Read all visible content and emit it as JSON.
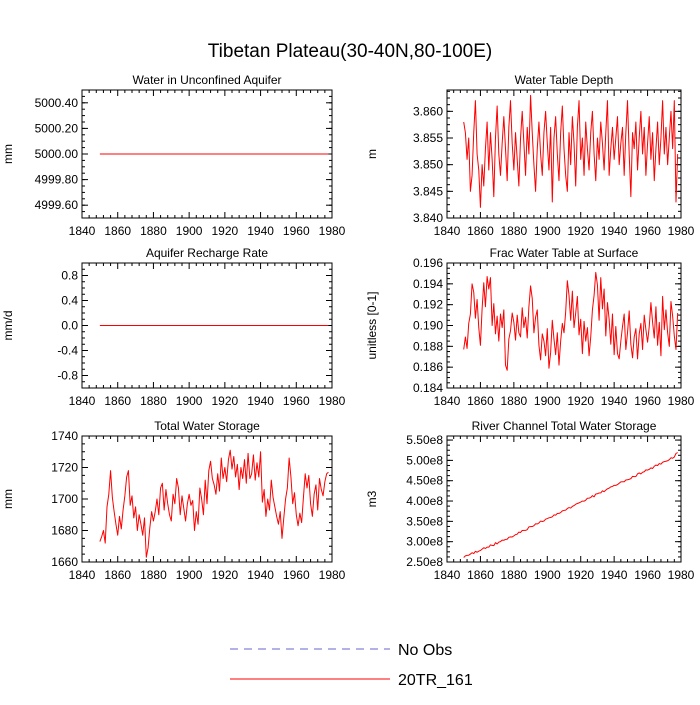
{
  "page_title": "Tibetan Plateau(30-40N,80-100E)",
  "legend": [
    {
      "label": "No Obs",
      "color": "#6666cc",
      "style": "dashed"
    },
    {
      "label": "20TR_161",
      "color": "#ff0000",
      "style": "solid"
    }
  ],
  "colors": {
    "series": "#ff0000",
    "axis": "#000000"
  },
  "chart_data": [
    {
      "type": "line",
      "title": "Water in Unconfined Aquifer",
      "ylabel": "mm",
      "xlim": [
        1840,
        1980
      ],
      "ylim": [
        4999.5,
        5000.5
      ],
      "xticks": [
        1840,
        1860,
        1880,
        1900,
        1920,
        1940,
        1960,
        1980
      ],
      "xtick_labels": [
        "1840",
        "1860",
        "1880",
        "1900",
        "1920",
        "1940",
        "1960",
        "1980"
      ],
      "yticks": [
        4999.6,
        4999.8,
        5000.0,
        5000.2,
        5000.4
      ],
      "ytick_labels": [
        "4999.60",
        "4999.80",
        "5000.00",
        "5000.20",
        "5000.40"
      ],
      "series": [
        {
          "name": "20TR_161",
          "x_start": 1850,
          "x_end": 1978,
          "values": [
            5000.0,
            5000.0
          ]
        }
      ]
    },
    {
      "type": "line",
      "title": "Water Table Depth",
      "ylabel": "m",
      "xlim": [
        1840,
        1980
      ],
      "ylim": [
        3.84,
        3.864
      ],
      "xticks": [
        1840,
        1860,
        1880,
        1900,
        1920,
        1940,
        1960,
        1980
      ],
      "xtick_labels": [
        "1840",
        "1860",
        "1880",
        "1900",
        "1920",
        "1940",
        "1960",
        "1980"
      ],
      "yticks": [
        3.84,
        3.845,
        3.85,
        3.855,
        3.86
      ],
      "ytick_labels": [
        "3.840",
        "3.845",
        "3.850",
        "3.855",
        "3.860"
      ],
      "series": [
        {
          "name": "20TR_161",
          "x_start": 1850,
          "x_end": 1978,
          "values": [
            3.858,
            3.856,
            3.851,
            3.855,
            3.845,
            3.848,
            3.856,
            3.862,
            3.852,
            3.849,
            3.842,
            3.85,
            3.846,
            3.853,
            3.858,
            3.849,
            3.856,
            3.851,
            3.844,
            3.855,
            3.861,
            3.852,
            3.848,
            3.854,
            3.859,
            3.853,
            3.847,
            3.857,
            3.862,
            3.854,
            3.849,
            3.856,
            3.851,
            3.846,
            3.855,
            3.86,
            3.854,
            3.848,
            3.857,
            3.852,
            3.863,
            3.856,
            3.85,
            3.845,
            3.853,
            3.858,
            3.852,
            3.848,
            3.856,
            3.86,
            3.854,
            3.849,
            3.857,
            3.843,
            3.855,
            3.859,
            3.852,
            3.847,
            3.856,
            3.861,
            3.853,
            3.848,
            3.845,
            3.856,
            3.85,
            3.859,
            3.854,
            3.846,
            3.857,
            3.862,
            3.851,
            3.855,
            3.848,
            3.858,
            3.853,
            3.849,
            3.856,
            3.86,
            3.852,
            3.847,
            3.855,
            3.851,
            3.858,
            3.854,
            3.849,
            3.856,
            3.862,
            3.848,
            3.853,
            3.857,
            3.851,
            3.855,
            3.859,
            3.85,
            3.854,
            3.857,
            3.848,
            3.856,
            3.862,
            3.852,
            3.844,
            3.856,
            3.853,
            3.858,
            3.849,
            3.855,
            3.86,
            3.852,
            3.857,
            3.848,
            3.854,
            3.859,
            3.851,
            3.856,
            3.847,
            3.853,
            3.858,
            3.85,
            3.855,
            3.862,
            3.852,
            3.857,
            3.85,
            3.855,
            3.86,
            3.853,
            3.862,
            3.843,
            3.852
          ]
        }
      ]
    },
    {
      "type": "line",
      "title": "Aquifer Recharge Rate",
      "ylabel": "mm/d",
      "xlim": [
        1840,
        1980
      ],
      "ylim": [
        -1.0,
        1.0
      ],
      "xticks": [
        1840,
        1860,
        1880,
        1900,
        1920,
        1940,
        1960,
        1980
      ],
      "xtick_labels": [
        "1840",
        "1860",
        "1880",
        "1900",
        "1920",
        "1940",
        "1960",
        "1980"
      ],
      "yticks": [
        -0.8,
        -0.4,
        0.0,
        0.4,
        0.8
      ],
      "ytick_labels": [
        "-0.8",
        "-0.4",
        "0.0",
        "0.4",
        "0.8"
      ],
      "series": [
        {
          "name": "20TR_161",
          "x_start": 1850,
          "x_end": 1978,
          "values": [
            0.0,
            0.0
          ]
        }
      ]
    },
    {
      "type": "line",
      "title": "Frac Water Table at Surface",
      "ylabel": "unitless [0-1]",
      "xlim": [
        1840,
        1980
      ],
      "ylim": [
        0.184,
        0.196
      ],
      "xticks": [
        1840,
        1860,
        1880,
        1900,
        1920,
        1940,
        1960,
        1980
      ],
      "xtick_labels": [
        "1840",
        "1860",
        "1880",
        "1900",
        "1920",
        "1940",
        "1960",
        "1980"
      ],
      "yticks": [
        0.184,
        0.186,
        0.188,
        0.19,
        0.192,
        0.194,
        0.196
      ],
      "ytick_labels": [
        "0.184",
        "0.186",
        "0.188",
        "0.190",
        "0.192",
        "0.194",
        "0.196"
      ],
      "series": [
        {
          "name": "20TR_161",
          "x_start": 1850,
          "x_end": 1978,
          "values": [
            0.1877,
            0.1889,
            0.1878,
            0.1902,
            0.1911,
            0.194,
            0.1932,
            0.1907,
            0.1925,
            0.1898,
            0.1881,
            0.1916,
            0.1941,
            0.1918,
            0.1947,
            0.1935,
            0.1946,
            0.19,
            0.1921,
            0.1892,
            0.1909,
            0.1885,
            0.1911,
            0.1898,
            0.1915,
            0.1862,
            0.1857,
            0.1887,
            0.1895,
            0.1912,
            0.1903,
            0.1886,
            0.191,
            0.1893,
            0.1889,
            0.1917,
            0.1898,
            0.1908,
            0.1888,
            0.1918,
            0.1938,
            0.1926,
            0.1893,
            0.1908,
            0.1915,
            0.1881,
            0.1867,
            0.1892,
            0.1885,
            0.1871,
            0.1897,
            0.1859,
            0.1874,
            0.1905,
            0.1887,
            0.1872,
            0.1893,
            0.1862,
            0.1885,
            0.1902,
            0.1893,
            0.1913,
            0.1943,
            0.1929,
            0.1905,
            0.1933,
            0.1898,
            0.1912,
            0.1928,
            0.1891,
            0.1906,
            0.1873,
            0.1904,
            0.1885,
            0.1898,
            0.1871,
            0.1889,
            0.1915,
            0.1929,
            0.1951,
            0.1939,
            0.1905,
            0.1946,
            0.1916,
            0.1935,
            0.189,
            0.1922,
            0.1906,
            0.1882,
            0.1911,
            0.1872,
            0.1899,
            0.1873,
            0.1868,
            0.1885,
            0.1899,
            0.1911,
            0.1877,
            0.1893,
            0.1914,
            0.1882,
            0.1869,
            0.1889,
            0.1897,
            0.1868,
            0.1892,
            0.1902,
            0.1877,
            0.191,
            0.1896,
            0.1884,
            0.1899,
            0.1922,
            0.1903,
            0.1888,
            0.1918,
            0.1881,
            0.1903,
            0.1871,
            0.1928,
            0.1896,
            0.1915,
            0.1893,
            0.188,
            0.1923,
            0.1909,
            0.189,
            0.1877,
            0.1912
          ]
        }
      ]
    },
    {
      "type": "line",
      "title": "Total Water Storage",
      "ylabel": "mm",
      "xlim": [
        1840,
        1980
      ],
      "ylim": [
        1660,
        1740
      ],
      "xticks": [
        1840,
        1860,
        1880,
        1900,
        1920,
        1940,
        1960,
        1980
      ],
      "xtick_labels": [
        "1840",
        "1860",
        "1880",
        "1900",
        "1920",
        "1940",
        "1960",
        "1980"
      ],
      "yticks": [
        1660,
        1680,
        1700,
        1720,
        1740
      ],
      "ytick_labels": [
        "1660",
        "1680",
        "1700",
        "1720",
        "1740"
      ],
      "series": [
        {
          "name": "20TR_161",
          "x_start": 1850,
          "x_end": 1978,
          "values": [
            1673,
            1676,
            1680,
            1672,
            1695,
            1703,
            1718,
            1701,
            1692,
            1684,
            1677,
            1689,
            1681,
            1693,
            1702,
            1714,
            1718,
            1696,
            1702,
            1688,
            1695,
            1680,
            1690,
            1684,
            1677,
            1688,
            1663,
            1669,
            1682,
            1692,
            1686,
            1692,
            1700,
            1690,
            1707,
            1710,
            1693,
            1706,
            1697,
            1690,
            1686,
            1703,
            1697,
            1713,
            1707,
            1690,
            1702,
            1694,
            1686,
            1697,
            1703,
            1696,
            1699,
            1680,
            1692,
            1684,
            1707,
            1700,
            1690,
            1712,
            1697,
            1718,
            1724,
            1713,
            1709,
            1703,
            1716,
            1705,
            1726,
            1713,
            1720,
            1711,
            1725,
            1731,
            1719,
            1727,
            1714,
            1722,
            1706,
            1720,
            1713,
            1725,
            1710,
            1729,
            1713,
            1716,
            1728,
            1712,
            1723,
            1714,
            1730,
            1698,
            1706,
            1689,
            1700,
            1693,
            1712,
            1701,
            1695,
            1689,
            1684,
            1692,
            1675,
            1688,
            1700,
            1707,
            1726,
            1714,
            1697,
            1704,
            1690,
            1683,
            1691,
            1685,
            1701,
            1716,
            1707,
            1715,
            1697,
            1689,
            1703,
            1709,
            1693,
            1713,
            1706,
            1702,
            1711,
            1716,
            1717
          ]
        }
      ]
    },
    {
      "type": "line",
      "title": "River Channel Total Water Storage",
      "ylabel": "m3",
      "xlim": [
        1840,
        1980
      ],
      "ylim": [
        250000000,
        560000000
      ],
      "xticks": [
        1840,
        1860,
        1880,
        1900,
        1920,
        1940,
        1960,
        1980
      ],
      "xtick_labels": [
        "1840",
        "1860",
        "1880",
        "1900",
        "1920",
        "1940",
        "1960",
        "1980"
      ],
      "yticks": [
        250000000,
        300000000,
        350000000,
        400000000,
        450000000,
        500000000,
        550000000
      ],
      "ytick_labels": [
        "2.50e8",
        "3.00e8",
        "3.50e8",
        "4.00e8",
        "4.50e8",
        "5.00e8",
        "5.50e8"
      ],
      "series": [
        {
          "name": "20TR_161",
          "x_start": 1850,
          "x_end": 1978,
          "values": [
            261000000,
            265100000,
            266400000,
            266700000,
            269500000,
            272800000,
            270700000,
            276200000,
            274000000,
            276700000,
            278400000,
            281700000,
            285100000,
            283300000,
            286600000,
            286500000,
            292100000,
            290800000,
            290400000,
            297500000,
            294400000,
            299000000,
            300100000,
            303900000,
            303500000,
            305500000,
            306000000,
            310700000,
            311900000,
            311600000,
            314300000,
            317300000,
            318400000,
            323600000,
            322700000,
            327500000,
            327900000,
            327700000,
            329600000,
            336400000,
            337100000,
            337300000,
            339400000,
            344000000,
            343500000,
            346000000,
            350700000,
            349600000,
            350800000,
            355300000,
            356900000,
            358700000,
            359500000,
            361100000,
            365900000,
            365200000,
            369300000,
            369600000,
            371600000,
            375700000,
            376900000,
            377500000,
            381700000,
            383900000,
            382700000,
            386900000,
            388800000,
            392200000,
            393900000,
            395500000,
            397500000,
            399800000,
            399700000,
            402200000,
            406900000,
            407200000,
            408500000,
            413300000,
            410400000,
            417300000,
            417900000,
            419800000,
            420000000,
            425200000,
            423000000,
            426800000,
            430100000,
            431800000,
            434900000,
            435900000,
            438600000,
            438500000,
            440500000,
            443600000,
            447200000,
            447500000,
            447500000,
            451800000,
            452300000,
            453400000,
            455100000,
            460600000,
            460000000,
            460300000,
            466900000,
            469200000,
            466600000,
            470900000,
            472100000,
            476700000,
            476100000,
            477900000,
            481600000,
            480100000,
            485600000,
            488400000,
            487400000,
            492200000,
            490700000,
            495400000,
            497100000,
            497800000,
            499000000,
            501800000,
            506400000,
            505300000,
            508200000,
            517200000,
            519200000
          ]
        }
      ]
    }
  ]
}
